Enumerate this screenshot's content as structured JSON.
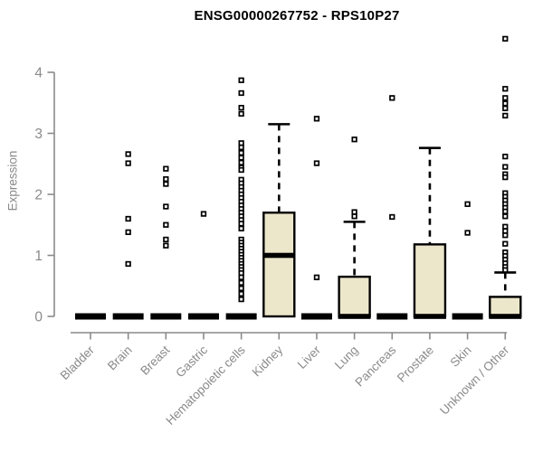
{
  "title": "ENSG00000267752 - RPS10P27",
  "chart_data": {
    "type": "boxplot",
    "title": "ENSG00000267752 - RPS10P27",
    "ylabel": "Expression",
    "xlabel": "",
    "ylim": [
      0,
      4
    ],
    "yticks": [
      "0",
      "1",
      "2",
      "3",
      "4"
    ],
    "grid": false,
    "legend": false,
    "box_fill": "#ECE7CB",
    "box_stroke": "#000000",
    "axis_color": "#8a8a8a",
    "categories": [
      "Bladder",
      "Brain",
      "Breast",
      "Gastric",
      "Hematopoietic cells",
      "Kidney",
      "Liver",
      "Lung",
      "Pancreas",
      "Prostate",
      "Skin",
      "Unknown / Other"
    ],
    "series": [
      {
        "category": "Bladder",
        "min": 0,
        "q1": 0,
        "median": 0,
        "q3": 0,
        "whisker_high": 0,
        "outliers": []
      },
      {
        "category": "Brain",
        "min": 0,
        "q1": 0,
        "median": 0,
        "q3": 0,
        "whisker_high": 0,
        "outliers": [
          2.66,
          2.51,
          1.6,
          1.38,
          0.86
        ]
      },
      {
        "category": "Breast",
        "min": 0,
        "q1": 0,
        "median": 0,
        "q3": 0,
        "whisker_high": 0,
        "outliers": [
          2.42,
          2.25,
          2.17,
          1.8,
          1.5,
          1.26,
          1.16
        ]
      },
      {
        "category": "Gastric",
        "min": 0,
        "q1": 0,
        "median": 0,
        "q3": 0,
        "whisker_high": 0,
        "outliers": [
          1.68
        ]
      },
      {
        "category": "Hematopoietic cells",
        "min": 0,
        "q1": 0,
        "median": 0,
        "q3": 0,
        "whisker_high": 0,
        "outliers": [
          3.87,
          3.66,
          3.42,
          3.32,
          2.84,
          2.77,
          2.68,
          2.6,
          2.52,
          2.44,
          2.4,
          2.24,
          2.18,
          2.12,
          2.06,
          2.0,
          1.94,
          1.88,
          1.82,
          1.76,
          1.7,
          1.64,
          1.58,
          1.52,
          1.44,
          1.26,
          1.21,
          1.16,
          1.11,
          1.06,
          1.01,
          0.96,
          0.91,
          0.86,
          0.81,
          0.76,
          0.71,
          0.64,
          0.55,
          0.46,
          0.37,
          0.28
        ]
      },
      {
        "category": "Kidney",
        "min": 0,
        "q1": 0,
        "median": 1.0,
        "q3": 1.7,
        "whisker_high": 3.15,
        "outliers": []
      },
      {
        "category": "Liver",
        "min": 0,
        "q1": 0,
        "median": 0,
        "q3": 0,
        "whisker_high": 0,
        "outliers": [
          3.24,
          2.51,
          0.64
        ]
      },
      {
        "category": "Lung",
        "min": 0,
        "q1": 0,
        "median": 0,
        "q3": 0.65,
        "whisker_high": 1.55,
        "outliers": [
          2.9,
          1.71,
          1.64
        ]
      },
      {
        "category": "Pancreas",
        "min": 0,
        "q1": 0,
        "median": 0,
        "q3": 0,
        "whisker_high": 0,
        "outliers": [
          3.58,
          1.63
        ]
      },
      {
        "category": "Prostate",
        "min": 0,
        "q1": 0,
        "median": 0,
        "q3": 1.18,
        "whisker_high": 2.76,
        "outliers": []
      },
      {
        "category": "Skin",
        "min": 0,
        "q1": 0,
        "median": 0,
        "q3": 0,
        "whisker_high": 0,
        "outliers": [
          1.84,
          1.37
        ]
      },
      {
        "category": "Unknown / Other",
        "min": 0,
        "q1": 0,
        "median": 0,
        "q3": 0.32,
        "whisker_high": 0.72,
        "outliers": [
          4.55,
          3.73,
          3.58,
          3.49,
          3.41,
          3.29,
          2.62,
          2.45,
          2.33,
          2.28,
          2.02,
          1.96,
          1.9,
          1.84,
          1.78,
          1.72,
          1.64,
          1.47,
          1.4,
          1.33,
          1.19,
          1.05,
          0.99,
          0.93,
          0.87,
          0.81,
          0.76
        ]
      }
    ]
  }
}
